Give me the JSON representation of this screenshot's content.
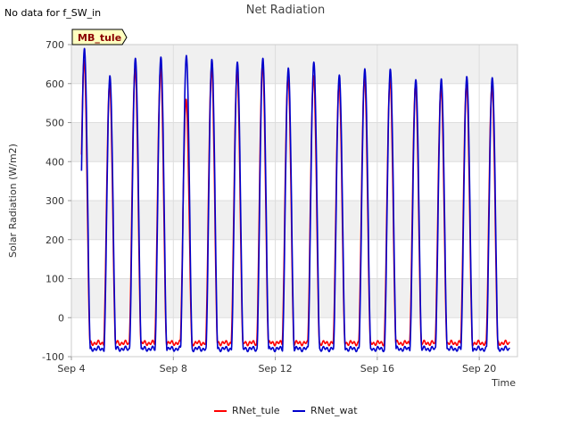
{
  "chart_data": {
    "type": "line",
    "title": "Net Radiation",
    "note": "No data for f_SW_in",
    "badge": "MB_tule",
    "xlabel": "Time",
    "ylabel": "Solar Radiation (W/m2)",
    "ylim": [
      -100,
      700
    ],
    "yticks": [
      -100,
      0,
      100,
      200,
      300,
      400,
      500,
      600,
      700
    ],
    "xlim_day": [
      4,
      21.5
    ],
    "xticks": [
      {
        "day": 4,
        "label": "Sep 4"
      },
      {
        "day": 8,
        "label": "Sep 8"
      },
      {
        "day": 12,
        "label": "Sep 12"
      },
      {
        "day": 16,
        "label": "Sep 16"
      },
      {
        "day": 20,
        "label": "Sep 20"
      }
    ],
    "day_peaks": [
      {
        "day": 4,
        "tule": 660,
        "wat": 690
      },
      {
        "day": 5,
        "tule": 600,
        "wat": 620
      },
      {
        "day": 6,
        "tule": 640,
        "wat": 665
      },
      {
        "day": 7,
        "tule": 640,
        "wat": 668
      },
      {
        "day": 8,
        "tule": 560,
        "wat": 672
      },
      {
        "day": 9,
        "tule": 640,
        "wat": 662
      },
      {
        "day": 10,
        "tule": 630,
        "wat": 655
      },
      {
        "day": 11,
        "tule": 650,
        "wat": 665
      },
      {
        "day": 12,
        "tule": 620,
        "wat": 640
      },
      {
        "day": 13,
        "tule": 620,
        "wat": 655
      },
      {
        "day": 14,
        "tule": 600,
        "wat": 622
      },
      {
        "day": 15,
        "tule": 615,
        "wat": 638
      },
      {
        "day": 16,
        "tule": 610,
        "wat": 637
      },
      {
        "day": 17,
        "tule": 595,
        "wat": 610
      },
      {
        "day": 18,
        "tule": 590,
        "wat": 612
      },
      {
        "day": 19,
        "tule": 600,
        "wat": 618
      },
      {
        "day": 20,
        "tule": 595,
        "wat": 615
      }
    ],
    "night_min": {
      "tule": -65,
      "wat": -80
    },
    "series": [
      {
        "name": "RNet_tule",
        "color": "#ff0000"
      },
      {
        "name": "RNet_wat",
        "color": "#0000cc"
      }
    ]
  },
  "colors": {
    "band": "#f0f0f0",
    "grid": "#dddddd",
    "badge_fill": "#ffffc0"
  }
}
